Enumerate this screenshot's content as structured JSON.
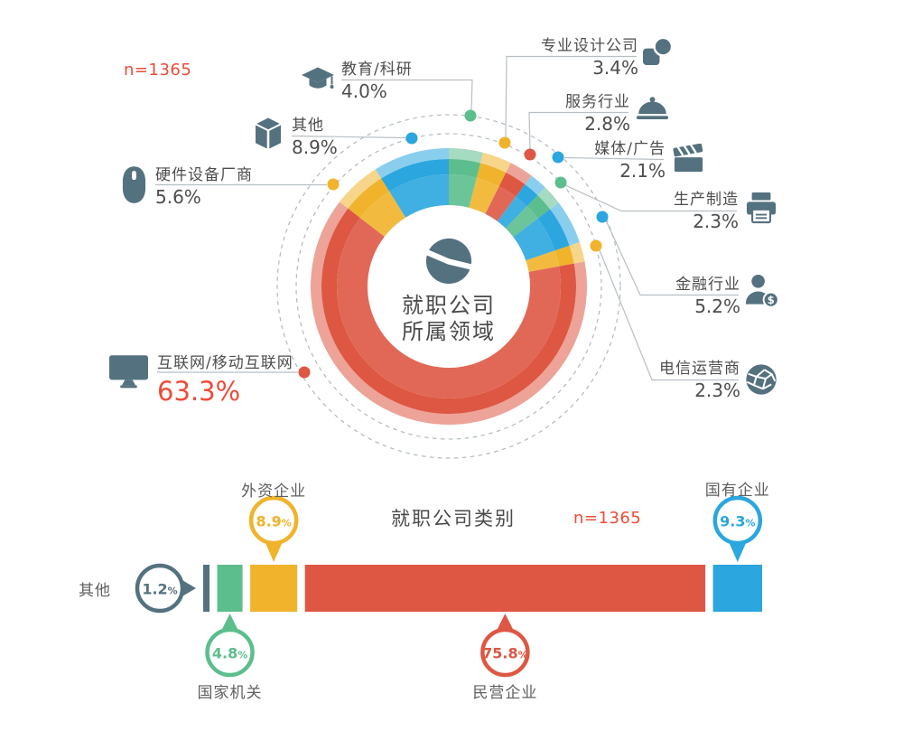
{
  "palette": {
    "red": "#DE5743",
    "yellow": "#F0B32B",
    "blue": "#2BA6DE",
    "green": "#5CBE8C",
    "slate": "#54717F",
    "accent_red": "#EE4B38",
    "text_dark": "#4D4D4D",
    "line_gray": "#B7BFC4"
  },
  "top_chart": {
    "n_label": "n=1365",
    "center_title_line1": "就职公司",
    "center_title_line2": "所属领域",
    "center_icon": "pie",
    "segments": [
      {
        "id": "edu",
        "label": "教育/科研",
        "pct": "4.0%",
        "value": 4.0,
        "color": "green",
        "icon": "graduation-cap"
      },
      {
        "id": "design",
        "label": "专业设计公司",
        "pct": "3.4%",
        "value": 3.4,
        "color": "yellow",
        "icon": "designer"
      },
      {
        "id": "service",
        "label": "服务行业",
        "pct": "2.8%",
        "value": 2.8,
        "color": "red",
        "icon": "food-cloche"
      },
      {
        "id": "media",
        "label": "媒体/广告",
        "pct": "2.1%",
        "value": 2.1,
        "color": "blue",
        "icon": "clapperboard"
      },
      {
        "id": "manufacturing",
        "label": "生产制造",
        "pct": "2.3%",
        "value": 2.3,
        "color": "green",
        "icon": "printer"
      },
      {
        "id": "finance",
        "label": "金融行业",
        "pct": "5.2%",
        "value": 5.2,
        "color": "blue",
        "icon": "banker"
      },
      {
        "id": "telecom",
        "label": "电信运营商",
        "pct": "2.3%",
        "value": 2.3,
        "color": "yellow",
        "icon": "globe"
      },
      {
        "id": "internet",
        "label": "互联网/移动互联网",
        "pct": "63.3%",
        "value": 63.3,
        "color": "red",
        "icon": "monitor",
        "emphasis": true
      },
      {
        "id": "hardware",
        "label": "硬件设备厂商",
        "pct": "5.6%",
        "value": 5.6,
        "color": "yellow",
        "icon": "mouse"
      },
      {
        "id": "other",
        "label": "其他",
        "pct": "8.9%",
        "value": 8.9,
        "color": "blue",
        "icon": "package"
      }
    ]
  },
  "bottom_chart": {
    "title": "就职公司类别",
    "n_label": "n=1365",
    "segments": [
      {
        "id": "qita",
        "label": "其他",
        "pct": "1.2%",
        "value": 1.2,
        "color": "slate",
        "callout": "left"
      },
      {
        "id": "gov",
        "label": "国家机关",
        "pct": "4.8%",
        "value": 4.8,
        "color": "green",
        "callout": "below"
      },
      {
        "id": "foreign",
        "label": "外资企业",
        "pct": "8.9%",
        "value": 8.9,
        "color": "yellow",
        "callout": "above"
      },
      {
        "id": "private",
        "label": "民营企业",
        "pct": "75.8%",
        "value": 75.8,
        "color": "red",
        "callout": "below"
      },
      {
        "id": "state",
        "label": "国有企业",
        "pct": "9.3%",
        "value": 9.3,
        "color": "blue",
        "callout": "above"
      }
    ]
  },
  "chart_data": [
    {
      "type": "pie",
      "subtype": "donut",
      "title": "就职公司所属领域",
      "sample_size": "n=1365",
      "labels": [
        "教育/科研",
        "专业设计公司",
        "服务行业",
        "媒体/广告",
        "生产制造",
        "金融行业",
        "电信运营商",
        "互联网/移动互联网",
        "硬件设备厂商",
        "其他"
      ],
      "values": [
        4.0,
        3.4,
        2.8,
        2.1,
        2.3,
        5.2,
        2.3,
        63.3,
        5.6,
        8.9
      ],
      "colors": [
        "green",
        "yellow",
        "red",
        "blue",
        "green",
        "blue",
        "yellow",
        "red",
        "yellow",
        "blue"
      ],
      "start_angle_deg": 0,
      "clockwise": true,
      "legend_position": "around-callouts"
    },
    {
      "type": "bar",
      "subtype": "horizontal-stacked",
      "title": "就职公司类别",
      "sample_size": "n=1365",
      "categories": [
        "其他",
        "国家机关",
        "外资企业",
        "民营企业",
        "国有企业"
      ],
      "values": [
        1.2,
        4.8,
        8.9,
        75.8,
        9.3
      ],
      "colors": [
        "slate",
        "green",
        "yellow",
        "red",
        "blue"
      ],
      "xlim": [
        0,
        100
      ],
      "grid": false
    }
  ]
}
